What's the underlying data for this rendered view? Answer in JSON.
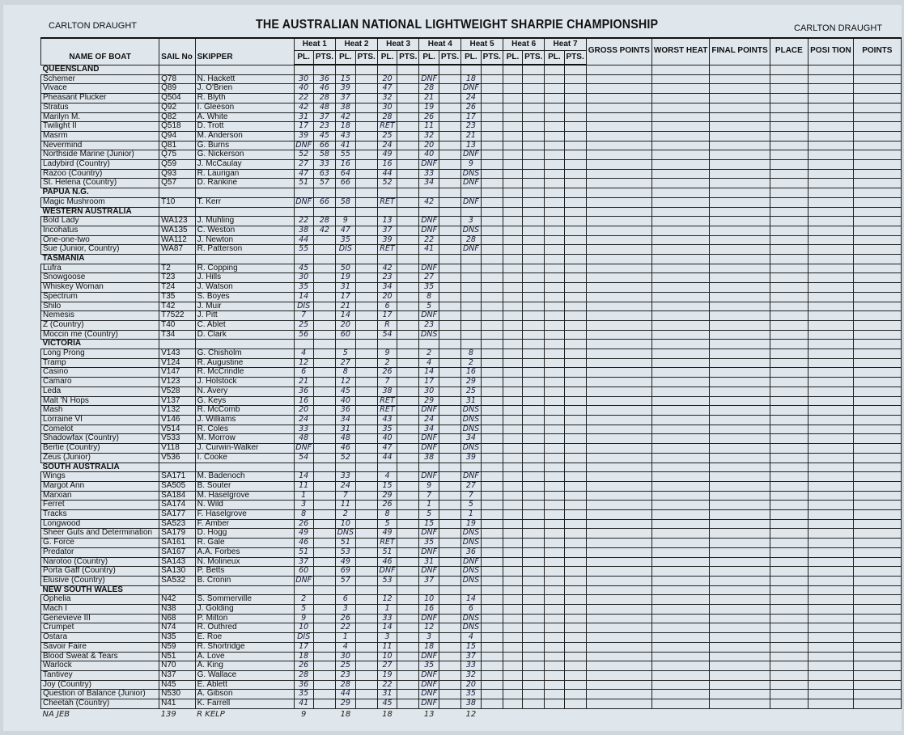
{
  "header": {
    "brand_left": "CARLTON DRAUGHT",
    "brand_right": "CARLTON DRAUGHT",
    "title": "THE AUSTRALIAN NATIONAL LIGHTWEIGHT SHARPIE CHAMPIONSHIP"
  },
  "columns": {
    "boat": "NAME OF BOAT",
    "sail": "SAIL No",
    "skipper": "SKIPPER",
    "heats": [
      "Heat 1",
      "Heat 2",
      "Heat 3",
      "Heat 4",
      "Heat 5",
      "Heat 6",
      "Heat 7"
    ],
    "pl": "PL.",
    "pts": "PTS.",
    "tail": [
      "GROSS POINTS",
      "WORST HEAT",
      "FINAL POINTS",
      "PLACE",
      "POSI TION",
      "POINTS"
    ]
  },
  "sections": [
    {
      "state": "QUEENSLAND",
      "rows": [
        [
          "Schemer",
          "Q78",
          "N. Hackett",
          [
            "30",
            "36",
            "15",
            "",
            "20",
            "",
            "DNF",
            "",
            "18"
          ]
        ],
        [
          "Vivace",
          "Q89",
          "J. O'Brien",
          [
            "40",
            "46",
            "39",
            "",
            "47",
            "",
            "28",
            "",
            "DNF"
          ]
        ],
        [
          "Pheasant Plucker",
          "Q504",
          "R. Blyth",
          [
            "22",
            "28",
            "37",
            "",
            "32",
            "",
            "21",
            "",
            "24"
          ]
        ],
        [
          "Stratus",
          "Q92",
          "I. Gleeson",
          [
            "42",
            "48",
            "38",
            "",
            "30",
            "",
            "19",
            "",
            "26"
          ]
        ],
        [
          "Marilyn M.",
          "Q82",
          "A. White",
          [
            "31",
            "37",
            "42",
            "",
            "28",
            "",
            "26",
            "",
            "17"
          ]
        ],
        [
          "Twilight II",
          "Q518",
          "D. Trott",
          [
            "17",
            "23",
            "18",
            "",
            "RET",
            "",
            "11",
            "",
            "23"
          ]
        ],
        [
          "Masrm",
          "Q94",
          "M. Anderson",
          [
            "39",
            "45",
            "43",
            "",
            "25",
            "",
            "32",
            "",
            "21"
          ]
        ],
        [
          "Nevermind",
          "Q81",
          "G. Burns",
          [
            "DNF",
            "66",
            "41",
            "",
            "24",
            "",
            "20",
            "",
            "13"
          ]
        ],
        [
          "Northside Marine (Junior)",
          "Q75",
          "G. Nickerson",
          [
            "52",
            "58",
            "55",
            "",
            "49",
            "",
            "40",
            "",
            "DNF"
          ]
        ],
        [
          "Ladybird (Country)",
          "Q59",
          "J. McCaulay",
          [
            "27",
            "33",
            "16",
            "",
            "16",
            "",
            "DNF",
            "",
            "9"
          ]
        ],
        [
          "Razoo (Country)",
          "Q93",
          "R. Laurigan",
          [
            "47",
            "63",
            "64",
            "",
            "44",
            "",
            "33",
            "",
            "DNS"
          ]
        ],
        [
          "St. Helena (Country)",
          "Q57",
          "D. Rankine",
          [
            "51",
            "57",
            "66",
            "",
            "52",
            "",
            "34",
            "",
            "DNF"
          ]
        ]
      ]
    },
    {
      "state": "PAPUA N.G.",
      "rows": [
        [
          "Magic Mushroom",
          "T10",
          "T. Kerr",
          [
            "DNF",
            "66",
            "58",
            "",
            "RET",
            "",
            "42",
            "",
            "DNF"
          ]
        ]
      ]
    },
    {
      "state": "WESTERN AUSTRALIA",
      "rows": [
        [
          "Bold Lady",
          "WA123",
          "J. Muhling",
          [
            "22",
            "28",
            "9",
            "",
            "13",
            "",
            "DNF",
            "",
            "3"
          ]
        ],
        [
          "Incohatus",
          "WA135",
          "C. Weston",
          [
            "38",
            "42",
            "47",
            "",
            "37",
            "",
            "DNF",
            "",
            "DNS"
          ]
        ],
        [
          "One-one-two",
          "WA112",
          "J. Newton",
          [
            "44",
            "",
            "35",
            "",
            "39",
            "",
            "22",
            "",
            "28"
          ]
        ],
        [
          "Sue (Junior, Country)",
          "WA87",
          "R. Patterson",
          [
            "55",
            "",
            "DIS",
            "",
            "RET",
            "",
            "41",
            "",
            "DNF"
          ]
        ]
      ]
    },
    {
      "state": "TASMANIA",
      "rows": [
        [
          "Lufra",
          "T2",
          "R. Copping",
          [
            "45",
            "",
            "50",
            "",
            "42",
            "",
            "DNF"
          ]
        ],
        [
          "Snowgoose",
          "T23",
          "J. Hills",
          [
            "30",
            "",
            "19",
            "",
            "23",
            "",
            "27"
          ]
        ],
        [
          "Whiskey Woman",
          "T24",
          "J. Watson",
          [
            "35",
            "",
            "31",
            "",
            "34",
            "",
            "35"
          ]
        ],
        [
          "Spectrum",
          "T35",
          "S. Boyes",
          [
            "14",
            "",
            "17",
            "",
            "20",
            "",
            "8"
          ]
        ],
        [
          "Shilo",
          "T42",
          "J. Muir",
          [
            "DIS",
            "",
            "21",
            "",
            "6",
            "",
            "5"
          ]
        ],
        [
          "Nemesis",
          "T7522",
          "J. Pitt",
          [
            "7",
            "",
            "14",
            "",
            "17",
            "",
            "DNF"
          ]
        ],
        [
          "Z (Country)",
          "T40",
          "C. Ablet",
          [
            "25",
            "",
            "20",
            "",
            "R",
            "",
            "23"
          ]
        ],
        [
          "Moccin me (Country)",
          "T34",
          "D. Clark",
          [
            "56",
            "",
            "60",
            "",
            "54",
            "",
            "DNS"
          ]
        ]
      ]
    },
    {
      "state": "VICTORIA",
      "rows": [
        [
          "Long Prong",
          "V143",
          "G. Chisholm",
          [
            "4",
            "",
            "5",
            "",
            "9",
            "",
            "2",
            "",
            "8"
          ]
        ],
        [
          "Tramp",
          "V124",
          "R. Augustine",
          [
            "12",
            "",
            "27",
            "",
            "2",
            "",
            "4",
            "",
            "2"
          ]
        ],
        [
          "Casino",
          "V147",
          "R. McCrindle",
          [
            "6",
            "",
            "8",
            "",
            "26",
            "",
            "14",
            "",
            "16"
          ]
        ],
        [
          "Camaro",
          "V123",
          "J. Holstock",
          [
            "21",
            "",
            "12",
            "",
            "7",
            "",
            "17",
            "",
            "29"
          ]
        ],
        [
          "Leda",
          "V528",
          "N. Avery",
          [
            "36",
            "",
            "45",
            "",
            "38",
            "",
            "30",
            "",
            "25"
          ]
        ],
        [
          "Malt 'N Hops",
          "V137",
          "G. Keys",
          [
            "16",
            "",
            "40",
            "",
            "RET",
            "",
            "29",
            "",
            "31"
          ]
        ],
        [
          "Mash",
          "V132",
          "R. McComb",
          [
            "20",
            "",
            "36",
            "",
            "RET",
            "",
            "DNF",
            "",
            "DNS"
          ]
        ],
        [
          "Lorraine VI",
          "V146",
          "J. Williams",
          [
            "24",
            "",
            "34",
            "",
            "43",
            "",
            "24",
            "",
            "DNS"
          ]
        ],
        [
          "Comelot",
          "V514",
          "R. Coles",
          [
            "33",
            "",
            "31",
            "",
            "35",
            "",
            "34",
            "",
            "DNS"
          ]
        ],
        [
          "Shadowfax (Country)",
          "V533",
          "M. Morrow",
          [
            "48",
            "",
            "48",
            "",
            "40",
            "",
            "DNF",
            "",
            "34"
          ]
        ],
        [
          "Bertie (Country)",
          "V118",
          "J. Curwin-Walker",
          [
            "DNF",
            "",
            "46",
            "",
            "47",
            "",
            "DNF",
            "",
            "DNS"
          ]
        ],
        [
          "Zeus (Junior)",
          "V536",
          "I. Cooke",
          [
            "54",
            "",
            "52",
            "",
            "44",
            "",
            "38",
            "",
            "39"
          ]
        ]
      ]
    },
    {
      "state": "SOUTH AUSTRALIA",
      "rows": [
        [
          "Wings",
          "SA171",
          "M. Badenoch",
          [
            "14",
            "",
            "33",
            "",
            "4",
            "",
            "DNF",
            "",
            "DNF"
          ]
        ],
        [
          "Margot Ann",
          "SA505",
          "B. Souter",
          [
            "11",
            "",
            "24",
            "",
            "15",
            "",
            "9",
            "",
            "27"
          ]
        ],
        [
          "Marxian",
          "SA184",
          "M. Haselgrove",
          [
            "1",
            "",
            "7",
            "",
            "29",
            "",
            "7",
            "",
            "7"
          ]
        ],
        [
          "Ferret",
          "SA174",
          "N. Wild",
          [
            "3",
            "",
            "11",
            "",
            "26",
            "",
            "1",
            "",
            "5"
          ]
        ],
        [
          "Tracks",
          "SA177",
          "F. Haselgrove",
          [
            "8",
            "",
            "2",
            "",
            "8",
            "",
            "5",
            "",
            "1"
          ]
        ],
        [
          "Longwood",
          "SA523",
          "F. Amber",
          [
            "26",
            "",
            "10",
            "",
            "5",
            "",
            "15",
            "",
            "19"
          ]
        ],
        [
          "Sheer Guts and Determination",
          "SA179",
          "D. Hogg",
          [
            "49",
            "",
            "DNS",
            "",
            "49",
            "",
            "DNF",
            "",
            "DNS"
          ]
        ],
        [
          "G. Force",
          "SA161",
          "R. Gale",
          [
            "46",
            "",
            "51",
            "",
            "RET",
            "",
            "35",
            "",
            "DNS"
          ]
        ],
        [
          "Predator",
          "SA167",
          "A.A. Forbes",
          [
            "51",
            "",
            "53",
            "",
            "51",
            "",
            "DNF",
            "",
            "36"
          ]
        ],
        [
          "Narotoo (Country)",
          "SA143",
          "N. Molineux",
          [
            "37",
            "",
            "49",
            "",
            "46",
            "",
            "31",
            "",
            "DNF"
          ]
        ],
        [
          "Porta Gaff (Country)",
          "SA130",
          "P. Betts",
          [
            "60",
            "",
            "69",
            "",
            "DNF",
            "",
            "DNF",
            "",
            "DNS"
          ]
        ],
        [
          "Elusive (Country)",
          "SA532",
          "B. Cronin",
          [
            "DNF",
            "",
            "57",
            "",
            "53",
            "",
            "37",
            "",
            "DNS"
          ]
        ]
      ]
    },
    {
      "state": "NEW SOUTH WALES",
      "rows": [
        [
          "Ophelia",
          "N42",
          "S. Sommerville",
          [
            "2",
            "",
            "6",
            "",
            "12",
            "",
            "10",
            "",
            "14"
          ]
        ],
        [
          "Mach I",
          "N38",
          "J. Golding",
          [
            "5",
            "",
            "3",
            "",
            "1",
            "",
            "16",
            "",
            "6"
          ]
        ],
        [
          "Genevieve III",
          "N68",
          "P. Milton",
          [
            "9",
            "",
            "26",
            "",
            "33",
            "",
            "DNF",
            "",
            "DNS"
          ]
        ],
        [
          "Crumpet",
          "N74",
          "R. Outhred",
          [
            "10",
            "",
            "22",
            "",
            "14",
            "",
            "12",
            "",
            "DNS"
          ]
        ],
        [
          "Ostara",
          "N35",
          "E. Roe",
          [
            "DIS",
            "",
            "1",
            "",
            "3",
            "",
            "3",
            "",
            "4"
          ]
        ],
        [
          "Savoir Faire",
          "N59",
          "R. Shortridge",
          [
            "17",
            "",
            "4",
            "",
            "11",
            "",
            "18",
            "",
            "15"
          ]
        ],
        [
          "Blood Sweat & Tears",
          "N51",
          "A. Love",
          [
            "18",
            "",
            "30",
            "",
            "10",
            "",
            "DNF",
            "",
            "37"
          ]
        ],
        [
          "Warlock",
          "N70",
          "A. King",
          [
            "26",
            "",
            "25",
            "",
            "27",
            "",
            "35",
            "",
            "33"
          ]
        ],
        [
          "Tantivey",
          "N37",
          "G. Wallace",
          [
            "28",
            "",
            "23",
            "",
            "19",
            "",
            "DNF",
            "",
            "32"
          ]
        ],
        [
          "Joy (Country)",
          "N45",
          "E. Ablett",
          [
            "36",
            "",
            "28",
            "",
            "22",
            "",
            "DNF",
            "",
            "20"
          ]
        ],
        [
          "Question of Balance (Junior)",
          "N530",
          "A. Gibson",
          [
            "35",
            "",
            "44",
            "",
            "31",
            "",
            "DNF",
            "",
            "35"
          ]
        ],
        [
          "Cheetah (Country)",
          "N41",
          "K. Farrell",
          [
            "41",
            "",
            "29",
            "",
            "45",
            "",
            "DNF",
            "",
            "38"
          ]
        ]
      ]
    }
  ],
  "footer_row": [
    "NA JEB",
    "139",
    "R KELP",
    [
      "9",
      "",
      "18",
      "",
      "18",
      "",
      "13",
      "",
      "12"
    ]
  ],
  "colors": {
    "paper": "#dfe6ec",
    "ink": "#1a1f3a",
    "print": "#111111"
  }
}
